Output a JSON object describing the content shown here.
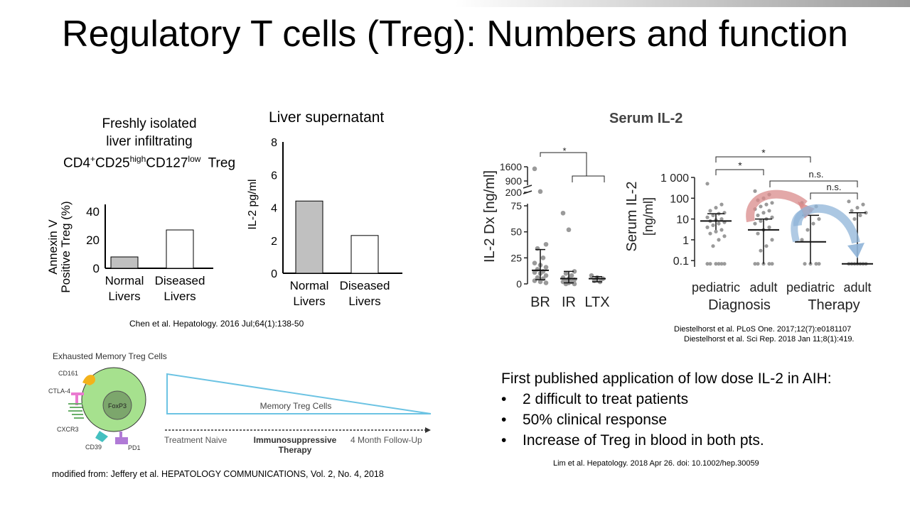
{
  "slide": {
    "title": "Regulatory T cells (Treg): Numbers and function",
    "citations": {
      "chen": "Chen et al. Hepatology. 2016 Jul;64(1):138-50",
      "diestel1": "Diestelhorst et al. PLoS One. 2017;12(7):e0181107",
      "diestel2": "Diestelhorst et al. Sci Rep. 2018 Jan 11;8(1):419.",
      "jeffery": "modified from: Jeffery et al. HEPATOLOGY COMMUNICATIONS,  Vol. 2, No. 4, 2018",
      "lim": "Lim et al. Hepatology. 2018 Apr 26. doi: 10.1002/hep.30059"
    },
    "annexin_panel": {
      "header_lines": [
        "Freshly isolated",
        "liver infiltrating"
      ],
      "header_marker": {
        "cd4": "CD4",
        "plus": "+",
        "cd25": "CD25",
        "high": "high",
        "cd127": "CD127",
        "low": "low",
        "treg": "Treg"
      },
      "ylabel_lines": [
        "Annexin V",
        "Positive Treg (%)"
      ]
    },
    "supernatant_panel": {
      "title": "Liver supernatant",
      "ylabel": "IL-2 pg/ml"
    },
    "serum_title": "Serum IL-2",
    "il2dx_panel": {
      "ylabel": "IL-2 Dx [ng/ml]",
      "sig": "*"
    },
    "serum_panel": {
      "ylabel_lines": [
        "Serum IL-2",
        "[ng/ml]"
      ],
      "group_labels": [
        "Diagnosis",
        "Therapy"
      ],
      "sig": [
        "*",
        "*",
        "n.s.",
        "n.s."
      ]
    },
    "bullets": {
      "heading": "First published application of low dose IL-2 in AIH:",
      "marker": "•",
      "items": [
        "2 difficult to treat patients",
        "50% clinical response",
        "Increase of Treg in blood in both pts."
      ]
    },
    "diagram": {
      "title": "Exhausted Memory Treg Cells",
      "markers": [
        "CD161",
        "CTLA-4",
        "CXCR3",
        "CD39",
        "PD1"
      ],
      "nucleus": "FoxP3",
      "wedge_label": "Memory Treg Cells",
      "timeline": [
        "Treatment Naive",
        "Immunosuppressive",
        "Therapy",
        "4 Month Follow-Up"
      ]
    }
  },
  "chart_data": [
    {
      "type": "bar",
      "categories": [
        "Normal Livers",
        "Diseased Livers"
      ],
      "values": [
        8,
        27
      ],
      "yticks": [
        0,
        20,
        40
      ],
      "ylim": [
        0,
        45
      ],
      "colors": [
        "#c0c0c0",
        "#ffffff"
      ]
    },
    {
      "type": "bar",
      "title": "Liver supernatant",
      "ylabel": "IL-2 pg/ml",
      "categories": [
        "Normal Livers",
        "Diseased Livers"
      ],
      "values": [
        4.4,
        2.3
      ],
      "yticks": [
        0,
        2,
        4,
        6,
        8
      ],
      "ylim": [
        0,
        8
      ],
      "colors": [
        "#c0c0c0",
        "#ffffff"
      ]
    },
    {
      "type": "scatter",
      "title": "Serum IL-2",
      "ylabel": "IL-2 Dx [ng/ml]",
      "categories": [
        "BR",
        "IR",
        "LTX"
      ],
      "yticks": [
        "0",
        "25",
        "50",
        "75",
        "200",
        "900",
        "1600"
      ],
      "groups": [
        {
          "name": "BR",
          "median": 13,
          "iqr": [
            4,
            33
          ],
          "points": [
            1500,
            250,
            38,
            34,
            25,
            20,
            18,
            16,
            14,
            12,
            11,
            10,
            8,
            6,
            5,
            3,
            2,
            1
          ]
        },
        {
          "name": "IR",
          "median": 5,
          "iqr": [
            1,
            12
          ],
          "points": [
            68,
            52,
            12,
            10,
            8,
            6,
            5,
            4,
            3,
            2,
            2,
            1,
            0,
            0
          ]
        },
        {
          "name": "LTX",
          "median": 5,
          "iqr": [
            2,
            7
          ],
          "points": [
            8,
            6,
            5,
            3,
            2
          ]
        }
      ]
    },
    {
      "type": "scatter",
      "ylabel": "Serum IL-2 [ng/ml]",
      "yscale": "log",
      "yticks": [
        "0.1",
        "1",
        "10",
        "100",
        "1 000"
      ],
      "ylim": [
        0.05,
        1000
      ],
      "categories": [
        "pediatric",
        "adult",
        "pediatric",
        "adult"
      ],
      "groups": [
        {
          "name": "pediatric (Diagnosis)",
          "median": 8,
          "iqr": [
            3,
            18
          ],
          "points": [
            500,
            50,
            35,
            25,
            20,
            18,
            15,
            12,
            10,
            9,
            8,
            7,
            6,
            5,
            4,
            3,
            2.5,
            2,
            1.5,
            1,
            0.5,
            0.07,
            0.07,
            0.07,
            0.07,
            0.07,
            0.07
          ]
        },
        {
          "name": "adult (Diagnosis)",
          "median": 3,
          "iqr": [
            0.07,
            10
          ],
          "points": [
            220,
            150,
            100,
            80,
            60,
            50,
            40,
            30,
            25,
            20,
            15,
            12,
            10,
            8,
            6,
            4,
            3,
            2,
            1,
            0.5,
            0.3,
            0.07,
            0.07,
            0.07,
            0.07,
            0.07
          ]
        },
        {
          "name": "pediatric (Therapy)",
          "median": 0.8,
          "iqr": [
            0.07,
            15
          ],
          "points": [
            60,
            40,
            25,
            15,
            10,
            6,
            3,
            1,
            0.07,
            0.07,
            0.07,
            0.07
          ]
        },
        {
          "name": "adult (Therapy)",
          "median": 0.07,
          "iqr": [
            0.07,
            20
          ],
          "points": [
            70,
            50,
            35,
            25,
            20,
            15,
            10,
            0.07,
            0.07,
            0.07,
            0.07,
            0.07,
            0.07,
            0.07
          ]
        }
      ]
    }
  ]
}
